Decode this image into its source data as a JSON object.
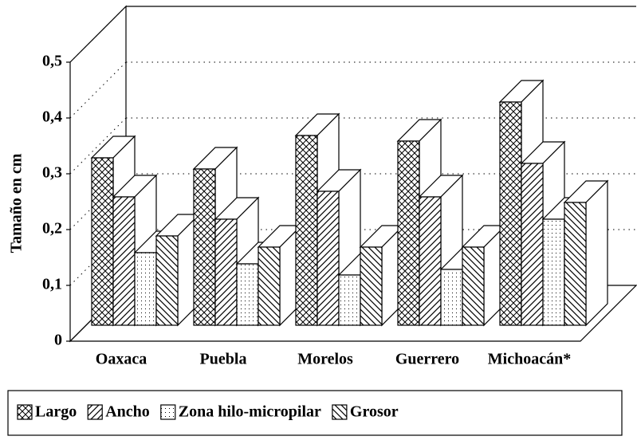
{
  "chart_data": {
    "type": "bar3d",
    "y_label": "Tamaño en cm",
    "categories": [
      "Oaxaca",
      "Puebla",
      "Morelos",
      "Guerrero",
      "Michoacán*"
    ],
    "series": [
      {
        "name": "Largo",
        "pattern": "crosshatch",
        "values": [
          0.3,
          0.28,
          0.34,
          0.33,
          0.4
        ]
      },
      {
        "name": "Ancho",
        "pattern": "forward-diagonal",
        "values": [
          0.23,
          0.19,
          0.24,
          0.23,
          0.29
        ]
      },
      {
        "name": "Zona hilo-micropilar",
        "pattern": "dots",
        "values": [
          0.13,
          0.11,
          0.09,
          0.1,
          0.19
        ]
      },
      {
        "name": "Grosor",
        "pattern": "backward-diagonal",
        "values": [
          0.16,
          0.14,
          0.14,
          0.14,
          0.22
        ]
      }
    ],
    "ylim": [
      0,
      0.5
    ],
    "yticks": [
      0,
      {
        "value": 0.1,
        "label": "0,1"
      },
      {
        "value": 0.2,
        "label": "0,2"
      },
      {
        "value": 0.3,
        "label": "0,3"
      },
      {
        "value": 0.4,
        "label": "0,4"
      },
      {
        "value": 0.5,
        "label": "0,5"
      }
    ],
    "grid": true,
    "legend": "bottom"
  }
}
